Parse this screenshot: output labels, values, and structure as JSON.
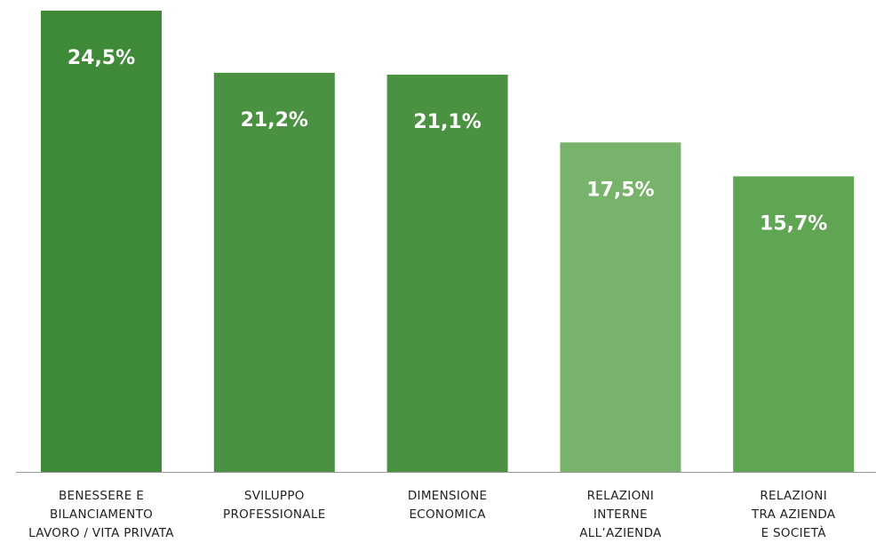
{
  "chart_data": {
    "type": "bar",
    "categories": [
      [
        "BENESSERE E",
        "BILANCIAMENTO",
        "LAVORO / VITA PRIVATA"
      ],
      [
        "SVILUPPO",
        "PROFESSIONALE"
      ],
      [
        "DIMENSIONE",
        "ECONOMICA"
      ],
      [
        "RELAZIONI",
        "INTERNE",
        "ALL’AZIENDA"
      ],
      [
        "RELAZIONI",
        "TRA AZIENDA",
        "E SOCIETÀ"
      ]
    ],
    "values": [
      24.5,
      21.2,
      21.1,
      17.5,
      15.7
    ],
    "value_labels": [
      "24,5%",
      "21,2%",
      "21,1%",
      "17,5%",
      "15,7%"
    ],
    "colors": [
      "#3f8a38",
      "#4a9241",
      "#4a9241",
      "#77b36a",
      "#5fa553"
    ]
  }
}
